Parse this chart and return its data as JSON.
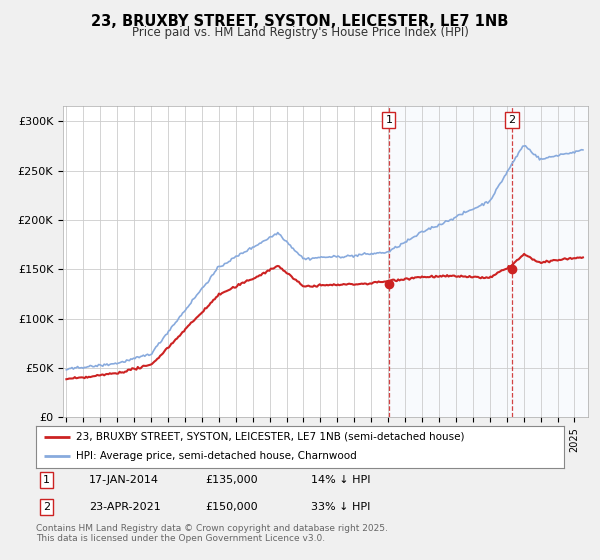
{
  "title": "23, BRUXBY STREET, SYSTON, LEICESTER, LE7 1NB",
  "subtitle": "Price paid vs. HM Land Registry's House Price Index (HPI)",
  "ylabel_ticks": [
    "£0",
    "£50K",
    "£100K",
    "£150K",
    "£200K",
    "£250K",
    "£300K"
  ],
  "ytick_vals": [
    0,
    50000,
    100000,
    150000,
    200000,
    250000,
    300000
  ],
  "ylim": [
    0,
    315000
  ],
  "xlim_start": 1994.8,
  "xlim_end": 2025.8,
  "purchase1": {
    "date": 2014.04,
    "price": 135000,
    "label": "1",
    "hpi_pct": "14% ↓ HPI",
    "date_str": "17-JAN-2014"
  },
  "purchase2": {
    "date": 2021.31,
    "price": 150000,
    "label": "2",
    "hpi_pct": "33% ↓ HPI",
    "date_str": "23-APR-2021"
  },
  "legend1_label": "23, BRUXBY STREET, SYSTON, LEICESTER, LE7 1NB (semi-detached house)",
  "legend2_label": "HPI: Average price, semi-detached house, Charnwood",
  "footnote": "Contains HM Land Registry data © Crown copyright and database right 2025.\nThis data is licensed under the Open Government Licence v3.0.",
  "line_red": "#cc2222",
  "line_blue": "#88aadd",
  "fill_blue": "#dde8f5",
  "fig_bg": "#f0f0f0",
  "plot_bg": "#ffffff",
  "grid_color": "#cccccc",
  "annotation_box_color": "#cc2222",
  "shade_color": "#dde8f5"
}
